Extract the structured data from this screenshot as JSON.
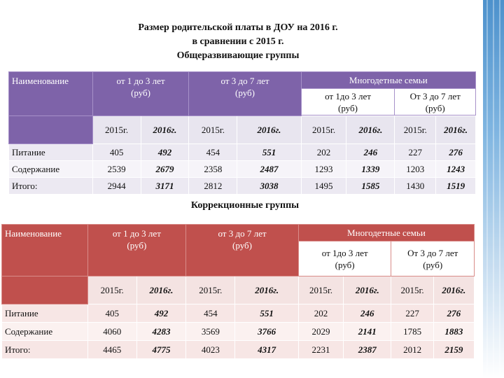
{
  "title": {
    "line1": "Размер родительской платы в ДОУ на 2016 г.",
    "line2": "в сравнении с 2015 г.",
    "line3": "Общеразвивающие группы"
  },
  "section2_title": "Коррекционные группы",
  "header": {
    "name": "Наименование",
    "age_1_3": "от 1 до 3 лет",
    "age_3_7": "от 3 до 7 лет",
    "unit": "(руб)",
    "large_families": "Многодетные семьи",
    "sub_1_3": "от 1до 3 лет",
    "sub_3_7": "От 3 до 7 лет"
  },
  "years": [
    "2015г.",
    "2016г.",
    "2015г.",
    "2016г.",
    "2015г.",
    "2016г.",
    "2015г.",
    "2016г."
  ],
  "general_groups": [
    {
      "name": "Питание",
      "values": [
        "405",
        "492",
        "454",
        "551",
        "202",
        "246",
        "227",
        "276"
      ]
    },
    {
      "name": "Содержание",
      "values": [
        "2539",
        "2679",
        "2358",
        "2487",
        "1293",
        "1339",
        "1203",
        "1243"
      ]
    },
    {
      "name": "Итого:",
      "values": [
        "2944",
        "3171",
        "2812",
        "3038",
        "1495",
        "1585",
        "1430",
        "1519"
      ]
    }
  ],
  "correction_groups": [
    {
      "name": "Питание",
      "values": [
        "405",
        "492",
        "454",
        "551",
        "202",
        "246",
        "227",
        "276"
      ]
    },
    {
      "name": "Содержание",
      "values": [
        "4060",
        "4283",
        "3569",
        "3766",
        "2029",
        "2141",
        "1785",
        "1883"
      ]
    },
    {
      "name": "Итого:",
      "values": [
        "4465",
        "4775",
        "4023",
        "4317",
        "2231",
        "2387",
        "2012",
        "2159"
      ]
    }
  ],
  "colors": {
    "table1_header": "#7e63a9",
    "table2_header": "#c0504d"
  }
}
